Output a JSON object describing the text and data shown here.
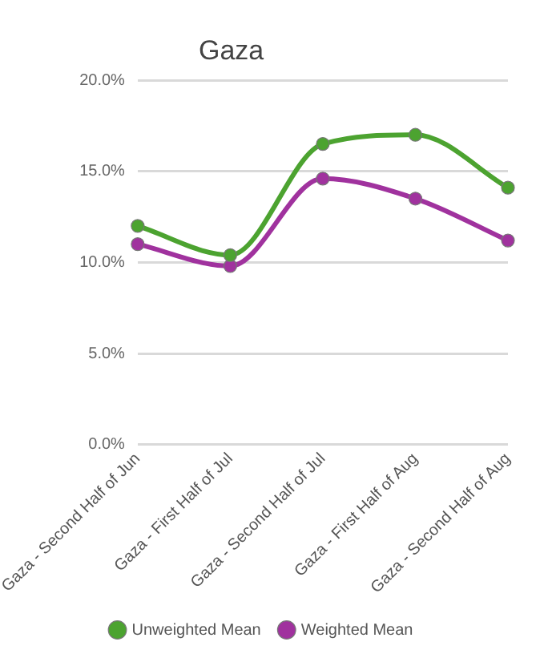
{
  "chart_data": {
    "type": "line",
    "title": "Gaza",
    "categories": [
      "Gaza - Second Half of Jun",
      "Gaza - First Half of Jul",
      "Gaza - Second Half of Jul",
      "Gaza - First Half of Aug",
      "Gaza - Second Half of Aug"
    ],
    "series": [
      {
        "name": "Unweighted Mean",
        "color": "#4ca330",
        "values": [
          12.0,
          10.4,
          16.5,
          17.0,
          14.1
        ]
      },
      {
        "name": "Weighted Mean",
        "color": "#a0329e",
        "values": [
          11.0,
          9.8,
          14.6,
          13.5,
          11.2
        ]
      }
    ],
    "ylim": [
      0,
      20
    ],
    "yticks": [
      {
        "value": 0,
        "label": "0.0%"
      },
      {
        "value": 5,
        "label": "5.0%"
      },
      {
        "value": 10,
        "label": "10.0%"
      },
      {
        "value": 15,
        "label": "15.0%"
      },
      {
        "value": 20,
        "label": "20.0%"
      }
    ],
    "grid": "y",
    "legend": "bottom",
    "marker": "circle",
    "line_style": "solid"
  }
}
